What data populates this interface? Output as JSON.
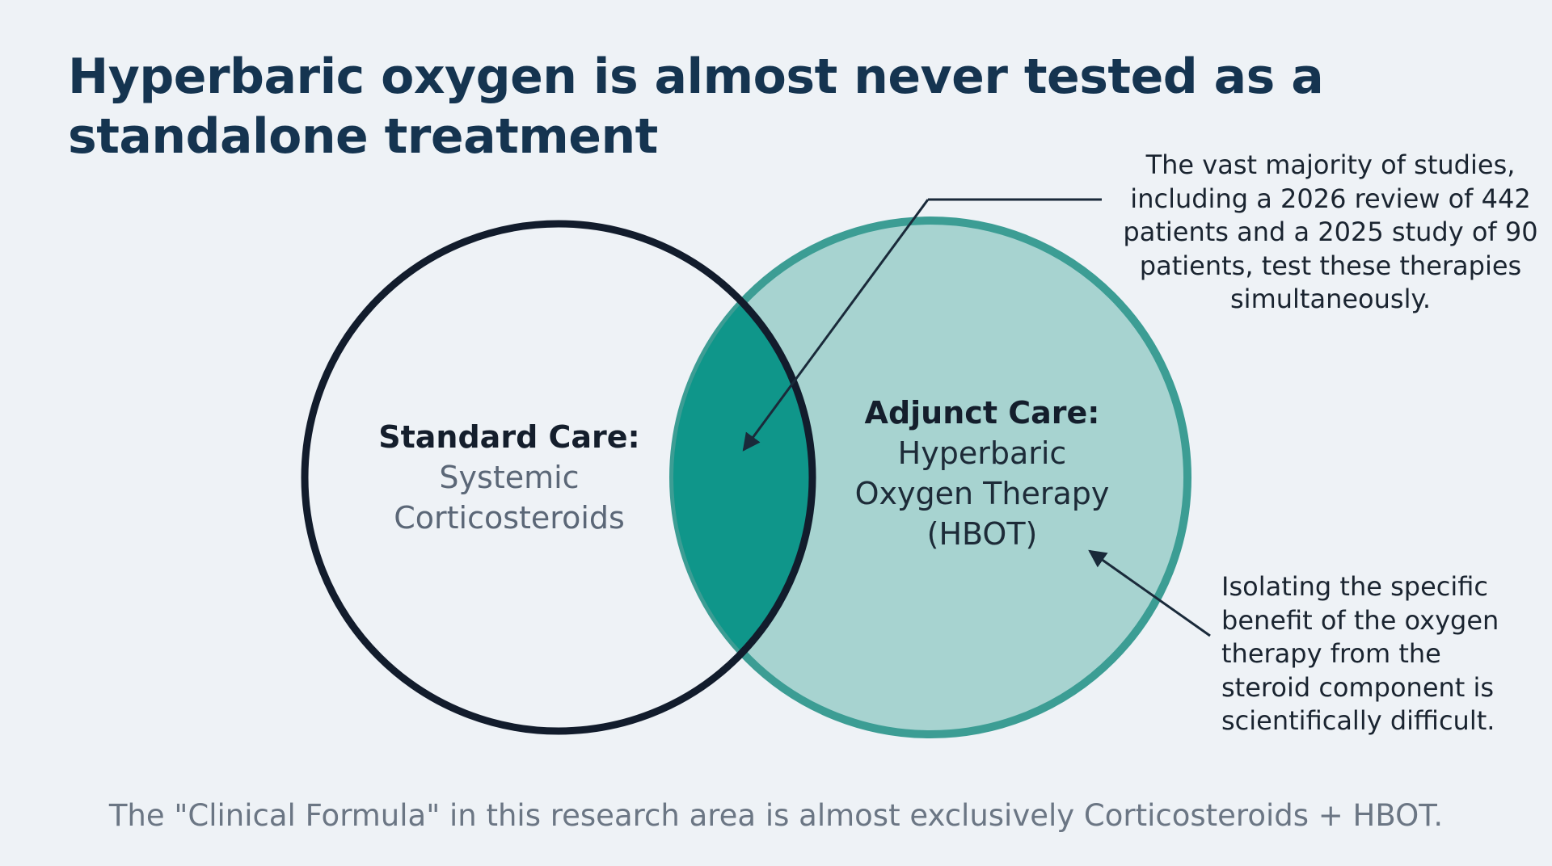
{
  "title": {
    "line1": "Hyperbaric oxygen is almost never tested as a",
    "line2": "standalone treatment"
  },
  "venn": {
    "left": {
      "heading": "Standard Care:",
      "body_line1": "Systemic",
      "body_line2": "Corticosteroids"
    },
    "right": {
      "heading": "Adjunct Care:",
      "body_line1": "Hyperbaric",
      "body_line2": "Oxygen Therapy",
      "body_line3": "(HBOT)"
    }
  },
  "callouts": {
    "top": {
      "line1": "The vast majority of studies,",
      "line2": "including a 2026 review of 442",
      "line3": "patients and a 2025 study of 90",
      "line4": "patients, test these therapies",
      "line5": "simultaneously."
    },
    "bottom": {
      "line1": "Isolating the specific",
      "line2": "benefit of the oxygen",
      "line3": "therapy from the",
      "line4": "steroid component is",
      "line5": "scientifically difficult."
    }
  },
  "footer": "The \"Clinical Formula\" in this research area is almost exclusively Corticosteroids + HBOT.",
  "colors": {
    "background": "#eef2f6",
    "title": "#153450",
    "left_circle_stroke": "#121c2c",
    "right_circle_fill": "#a7d3d0",
    "right_circle_stroke": "#3c9d94",
    "overlap_fill": "#0f968a"
  }
}
